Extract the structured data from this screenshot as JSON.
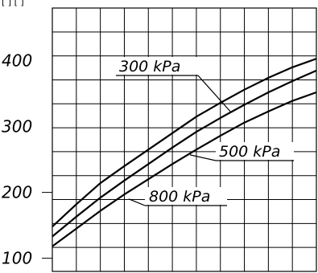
{
  "header": {
    "note": "[   ] [   ]"
  },
  "chart_data": {
    "type": "line",
    "title": "",
    "xlabel": "",
    "ylabel": "",
    "ylim": [
      80,
      480
    ],
    "xlim": [
      0,
      11
    ],
    "grid": true,
    "y_ticks": [
      100,
      200,
      300,
      400
    ],
    "y_tick_labels": [
      "100",
      "200",
      "300",
      "400"
    ],
    "series": [
      {
        "name": "300 kPa",
        "x": [
          0,
          1,
          2,
          3,
          4,
          5,
          6,
          7,
          8,
          9,
          10,
          11
        ],
        "y": [
          148,
          182,
          214,
          240,
          265,
          290,
          315,
          336,
          356,
          374,
          390,
          403
        ]
      },
      {
        "name": "500 kPa",
        "x": [
          0,
          1,
          2,
          3,
          4,
          5,
          6,
          7,
          8,
          9,
          10,
          11
        ],
        "y": [
          133,
          163,
          192,
          218,
          243,
          268,
          292,
          313,
          333,
          352,
          369,
          385
        ]
      },
      {
        "name": "800 kPa",
        "x": [
          0,
          1,
          2,
          3,
          4,
          5,
          6,
          7,
          8,
          9,
          10,
          11
        ],
        "y": [
          118,
          145,
          172,
          197,
          220,
          243,
          265,
          286,
          306,
          323,
          339,
          352
        ]
      }
    ]
  }
}
